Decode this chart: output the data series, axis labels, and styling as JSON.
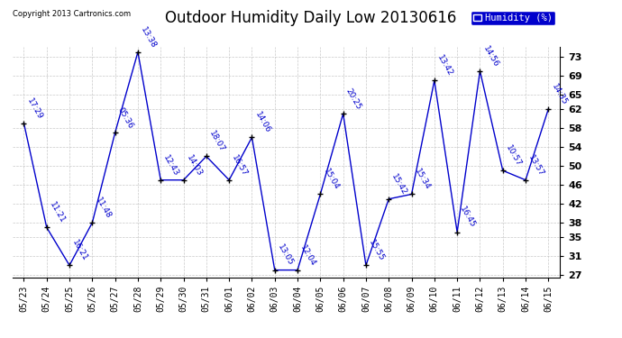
{
  "title": "Outdoor Humidity Daily Low 20130616",
  "copyright": "Copyright 2013 Cartronics.com",
  "legend_label": "Humidity (%)",
  "x_labels": [
    "05/23",
    "05/24",
    "05/25",
    "05/26",
    "05/27",
    "05/28",
    "05/29",
    "05/30",
    "05/31",
    "06/01",
    "06/02",
    "06/03",
    "06/04",
    "06/05",
    "06/06",
    "06/07",
    "06/08",
    "06/09",
    "06/10",
    "06/11",
    "06/12",
    "06/13",
    "06/14",
    "06/15"
  ],
  "y_values": [
    59,
    37,
    29,
    38,
    57,
    74,
    47,
    47,
    52,
    47,
    56,
    28,
    28,
    44,
    61,
    29,
    43,
    44,
    68,
    36,
    70,
    49,
    47,
    62
  ],
  "point_labels": [
    "17:29",
    "11:21",
    "16:21",
    "11:48",
    "05:36",
    "13:38",
    "12:43",
    "14:03",
    "18:07",
    "16:57",
    "14:06",
    "13:05",
    "12:04",
    "15:04",
    "20:25",
    "15:55",
    "15:42",
    "15:34",
    "13:42",
    "16:45",
    "14:56",
    "10:57",
    "13:57",
    "14:35"
  ],
  "ylim_min": 27,
  "ylim_max": 75,
  "yticks": [
    27,
    31,
    35,
    38,
    42,
    46,
    50,
    54,
    58,
    62,
    65,
    69,
    73
  ],
  "line_color": "#0000cc",
  "marker_color": "#000000",
  "bg_color": "#ffffff",
  "grid_color": "#bbbbbb",
  "title_fontsize": 12,
  "annot_fontsize": 6.5,
  "tick_fontsize": 7,
  "ytick_fontsize": 8
}
